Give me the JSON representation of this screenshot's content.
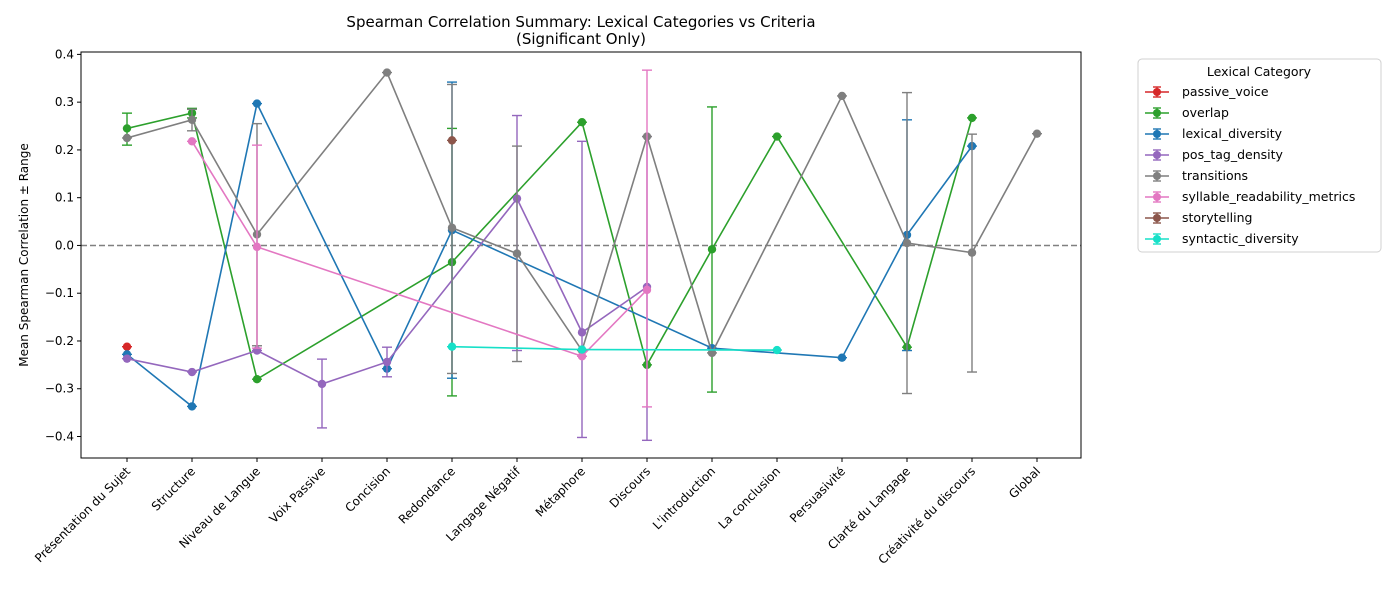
{
  "chart_data": {
    "type": "line",
    "title": "Spearman Correlation Summary: Lexical Categories vs Criteria",
    "subtitle": "(Significant Only)",
    "xlabel": "",
    "ylabel": "Mean Spearman Correlation ± Range",
    "ylim": [
      -0.445,
      0.405
    ],
    "yticks": [
      -0.4,
      -0.3,
      -0.2,
      -0.1,
      0.0,
      0.1,
      0.2,
      0.3,
      0.4
    ],
    "ytick_labels": [
      "−0.4",
      "−0.3",
      "−0.2",
      "−0.1",
      "0.0",
      "0.1",
      "0.2",
      "0.3",
      "0.4"
    ],
    "reference_line": 0.0,
    "categories": [
      "Présentation du Sujet",
      "Structure",
      "Niveau de Langue",
      "Voix Passive",
      "Concision",
      "Redondance",
      "Langage Négatif",
      "Métaphore",
      "Discours",
      "L'introduction",
      "La conclusion",
      "Persuasivité",
      "Clarté du Langage",
      "Créativité du discours",
      "Global"
    ],
    "legend_title": "Lexical Category",
    "legend_position": "outside-right",
    "series": [
      {
        "name": "passive_voice",
        "color": "#d62728",
        "points": [
          {
            "x": 0,
            "y": -0.212,
            "lo": -0.212,
            "hi": -0.212
          }
        ]
      },
      {
        "name": "overlap",
        "color": "#2ca02c",
        "points": [
          {
            "x": 0,
            "y": 0.245,
            "lo": 0.21,
            "hi": 0.277
          },
          {
            "x": 1,
            "y": 0.277,
            "lo": 0.267,
            "hi": 0.287
          },
          {
            "x": 2,
            "y": -0.28,
            "lo": -0.28,
            "hi": -0.28
          },
          {
            "x": 5,
            "y": -0.035,
            "lo": -0.315,
            "hi": 0.245
          },
          {
            "x": 7,
            "y": 0.258,
            "lo": 0.258,
            "hi": 0.258
          },
          {
            "x": 8,
            "y": -0.25,
            "lo": -0.25,
            "hi": -0.25
          },
          {
            "x": 9,
            "y": -0.008,
            "lo": -0.307,
            "hi": 0.29
          },
          {
            "x": 10,
            "y": 0.228,
            "lo": 0.228,
            "hi": 0.228
          },
          {
            "x": 12,
            "y": -0.213,
            "lo": -0.213,
            "hi": -0.213
          },
          {
            "x": 13,
            "y": 0.267,
            "lo": 0.267,
            "hi": 0.267
          }
        ]
      },
      {
        "name": "lexical_diversity",
        "color": "#1f77b4",
        "points": [
          {
            "x": 0,
            "y": -0.228,
            "lo": -0.228,
            "hi": -0.228
          },
          {
            "x": 1,
            "y": -0.337,
            "lo": -0.337,
            "hi": -0.337
          },
          {
            "x": 2,
            "y": 0.297,
            "lo": 0.297,
            "hi": 0.297
          },
          {
            "x": 4,
            "y": -0.258,
            "lo": -0.258,
            "hi": -0.258
          },
          {
            "x": 5,
            "y": 0.032,
            "lo": -0.278,
            "hi": 0.342
          },
          {
            "x": 9,
            "y": -0.215,
            "lo": -0.215,
            "hi": -0.215
          },
          {
            "x": 11,
            "y": -0.235,
            "lo": -0.235,
            "hi": -0.235
          },
          {
            "x": 12,
            "y": 0.022,
            "lo": -0.22,
            "hi": 0.263
          },
          {
            "x": 13,
            "y": 0.208,
            "lo": 0.208,
            "hi": 0.208
          }
        ]
      },
      {
        "name": "pos_tag_density",
        "color": "#9467bd",
        "points": [
          {
            "x": 0,
            "y": -0.237,
            "lo": -0.237,
            "hi": -0.237
          },
          {
            "x": 1,
            "y": -0.265,
            "lo": -0.265,
            "hi": -0.265
          },
          {
            "x": 2,
            "y": -0.22,
            "lo": -0.22,
            "hi": -0.22
          },
          {
            "x": 3,
            "y": -0.29,
            "lo": -0.382,
            "hi": -0.238
          },
          {
            "x": 4,
            "y": -0.244,
            "lo": -0.275,
            "hi": -0.213
          },
          {
            "x": 6,
            "y": 0.098,
            "lo": -0.22,
            "hi": 0.272
          },
          {
            "x": 7,
            "y": -0.182,
            "lo": -0.402,
            "hi": 0.218
          },
          {
            "x": 8,
            "y": -0.087,
            "lo": -0.408,
            "hi": 0.228
          }
        ]
      },
      {
        "name": "transitions",
        "color": "#7f7f7f",
        "points": [
          {
            "x": 0,
            "y": 0.225,
            "lo": 0.225,
            "hi": 0.225
          },
          {
            "x": 1,
            "y": 0.263,
            "lo": 0.24,
            "hi": 0.285
          },
          {
            "x": 2,
            "y": 0.023,
            "lo": -0.21,
            "hi": 0.255
          },
          {
            "x": 4,
            "y": 0.362,
            "lo": 0.362,
            "hi": 0.362
          },
          {
            "x": 5,
            "y": 0.037,
            "lo": -0.268,
            "hi": 0.337
          },
          {
            "x": 6,
            "y": -0.017,
            "lo": -0.243,
            "hi": 0.208
          },
          {
            "x": 7,
            "y": -0.22,
            "lo": -0.22,
            "hi": -0.22
          },
          {
            "x": 8,
            "y": 0.228,
            "lo": 0.228,
            "hi": 0.228
          },
          {
            "x": 9,
            "y": -0.225,
            "lo": -0.225,
            "hi": -0.225
          },
          {
            "x": 11,
            "y": 0.313,
            "lo": 0.313,
            "hi": 0.313
          },
          {
            "x": 12,
            "y": 0.005,
            "lo": -0.31,
            "hi": 0.32
          },
          {
            "x": 13,
            "y": -0.015,
            "lo": -0.265,
            "hi": 0.233
          },
          {
            "x": 14,
            "y": 0.234,
            "lo": 0.234,
            "hi": 0.234
          }
        ]
      },
      {
        "name": "syllable_readability_metrics",
        "color": "#e377c2",
        "points": [
          {
            "x": 1,
            "y": 0.218,
            "lo": 0.218,
            "hi": 0.218
          },
          {
            "x": 2,
            "y": -0.003,
            "lo": -0.215,
            "hi": 0.21
          },
          {
            "x": 7,
            "y": -0.232,
            "lo": -0.232,
            "hi": -0.232
          },
          {
            "x": 8,
            "y": -0.093,
            "lo": -0.338,
            "hi": 0.367
          }
        ]
      },
      {
        "name": "storytelling",
        "color": "#8c564b",
        "points": [
          {
            "x": 5,
            "y": 0.22,
            "lo": 0.22,
            "hi": 0.22
          }
        ]
      },
      {
        "name": "syntactic_diversity",
        "color": "#17e0c8",
        "points": [
          {
            "x": 5,
            "y": -0.212,
            "lo": -0.212,
            "hi": -0.212
          },
          {
            "x": 7,
            "y": -0.218,
            "lo": -0.218,
            "hi": -0.218
          },
          {
            "x": 10,
            "y": -0.219,
            "lo": -0.219,
            "hi": -0.219
          }
        ]
      }
    ]
  }
}
